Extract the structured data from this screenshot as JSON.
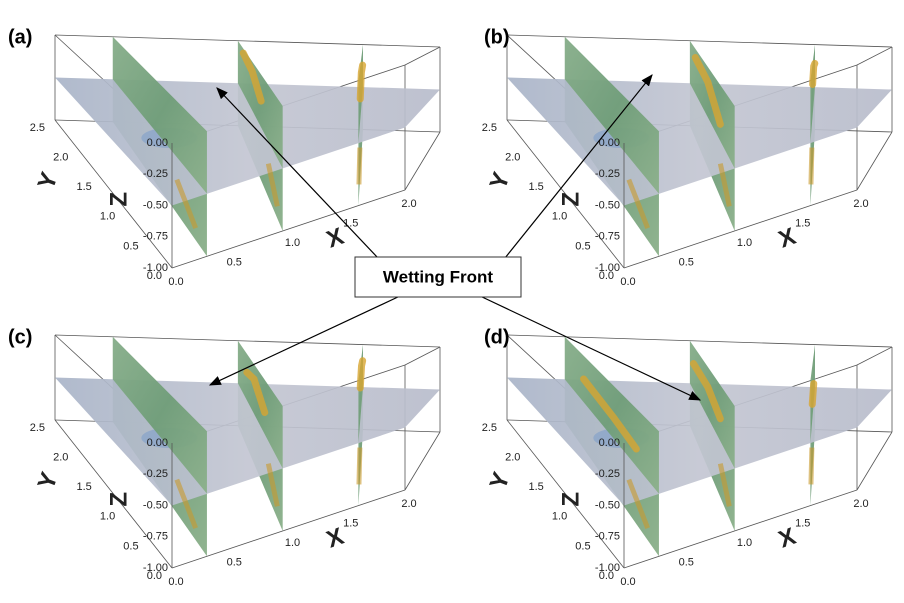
{
  "panels": [
    {
      "label": "(a)",
      "x_label": "X",
      "y_label": "Y",
      "z_label": "Z",
      "x_ticks": [
        "0.0",
        "0.5",
        "1.0",
        "1.5",
        "2.0"
      ],
      "y_ticks": [
        "0.0",
        "0.5",
        "1.0",
        "1.5",
        "2.0",
        "2.5"
      ],
      "z_ticks": [
        "0.00",
        "-0.25",
        "-0.50",
        "-0.75",
        "-1.00"
      ]
    },
    {
      "label": "(b)",
      "x_label": "X",
      "y_label": "Y",
      "z_label": "Z",
      "x_ticks": [
        "0.0",
        "0.5",
        "1.0",
        "1.5",
        "2.0"
      ],
      "y_ticks": [
        "0.0",
        "0.5",
        "1.0",
        "1.5",
        "2.0",
        "2.5"
      ],
      "z_ticks": [
        "0.00",
        "-0.25",
        "-0.50",
        "-0.75",
        "-1.00"
      ]
    },
    {
      "label": "(c)",
      "x_label": "X",
      "y_label": "Y",
      "z_label": "Z",
      "x_ticks": [
        "0.0",
        "0.5",
        "1.0",
        "1.5",
        "2.0"
      ],
      "y_ticks": [
        "0.0",
        "0.5",
        "1.0",
        "1.5",
        "2.0",
        "2.5"
      ],
      "z_ticks": [
        "0.00",
        "-0.25",
        "-0.50",
        "-0.75",
        "-1.00"
      ]
    },
    {
      "label": "(d)",
      "x_label": "X",
      "y_label": "Y",
      "z_label": "Z",
      "x_ticks": [
        "0.0",
        "0.5",
        "1.0",
        "1.5",
        "2.0"
      ],
      "y_ticks": [
        "0.0",
        "0.5",
        "1.0",
        "1.5",
        "2.0",
        "2.5"
      ],
      "z_ticks": [
        "0.00",
        "-0.25",
        "-0.50",
        "-0.75",
        "-1.00"
      ]
    }
  ],
  "annotation": "Wetting Front"
}
